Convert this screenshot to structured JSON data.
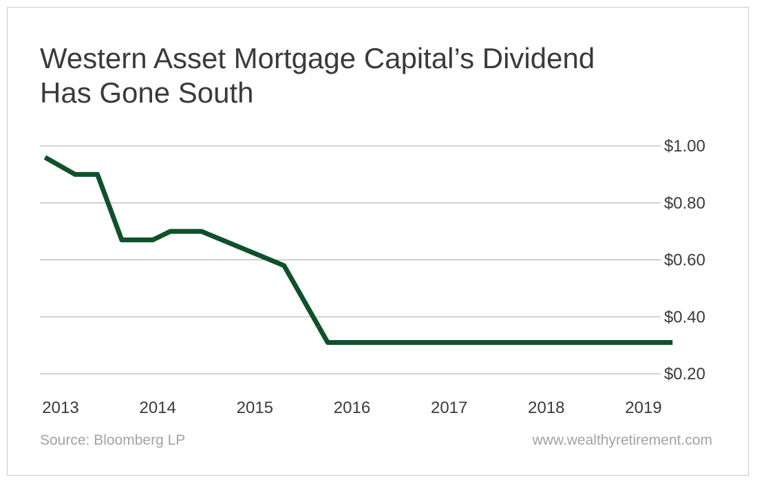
{
  "title_lines": [
    "Western Asset Mortgage Capital’s Dividend",
    "Has Gone South"
  ],
  "footer": {
    "source": "Source: Bloomberg LP",
    "website": "www.wealthyretirement.com"
  },
  "colors": {
    "line": "#0f5129",
    "grid": "#a8a8a8",
    "text": "#3a3a3a",
    "muted": "#a3a3a3"
  },
  "chart_data": {
    "type": "line",
    "title": "Western Asset Mortgage Capital’s Dividend Has Gone South",
    "xlabel": "",
    "ylabel": "",
    "x_ticks": [
      "2013",
      "2014",
      "2015",
      "2016",
      "2017",
      "2018",
      "2019"
    ],
    "y_ticks": [
      "$1.00",
      "$0.80",
      "$0.60",
      "$0.40",
      "$0.20"
    ],
    "y_tick_values": [
      1.0,
      0.8,
      0.6,
      0.4,
      0.2
    ],
    "xlim": [
      2013,
      2019
    ],
    "ylim": [
      0.2,
      1.0
    ],
    "axis_side": "right",
    "grid": true,
    "series": [
      {
        "x": [
          2012.84,
          2013.15,
          2013.38,
          2013.63,
          2013.95,
          2014.13,
          2014.45,
          2015.3,
          2015.75,
          2019.3
        ],
        "y": [
          0.96,
          0.9,
          0.9,
          0.67,
          0.67,
          0.7,
          0.7,
          0.58,
          0.31,
          0.31
        ]
      }
    ]
  }
}
